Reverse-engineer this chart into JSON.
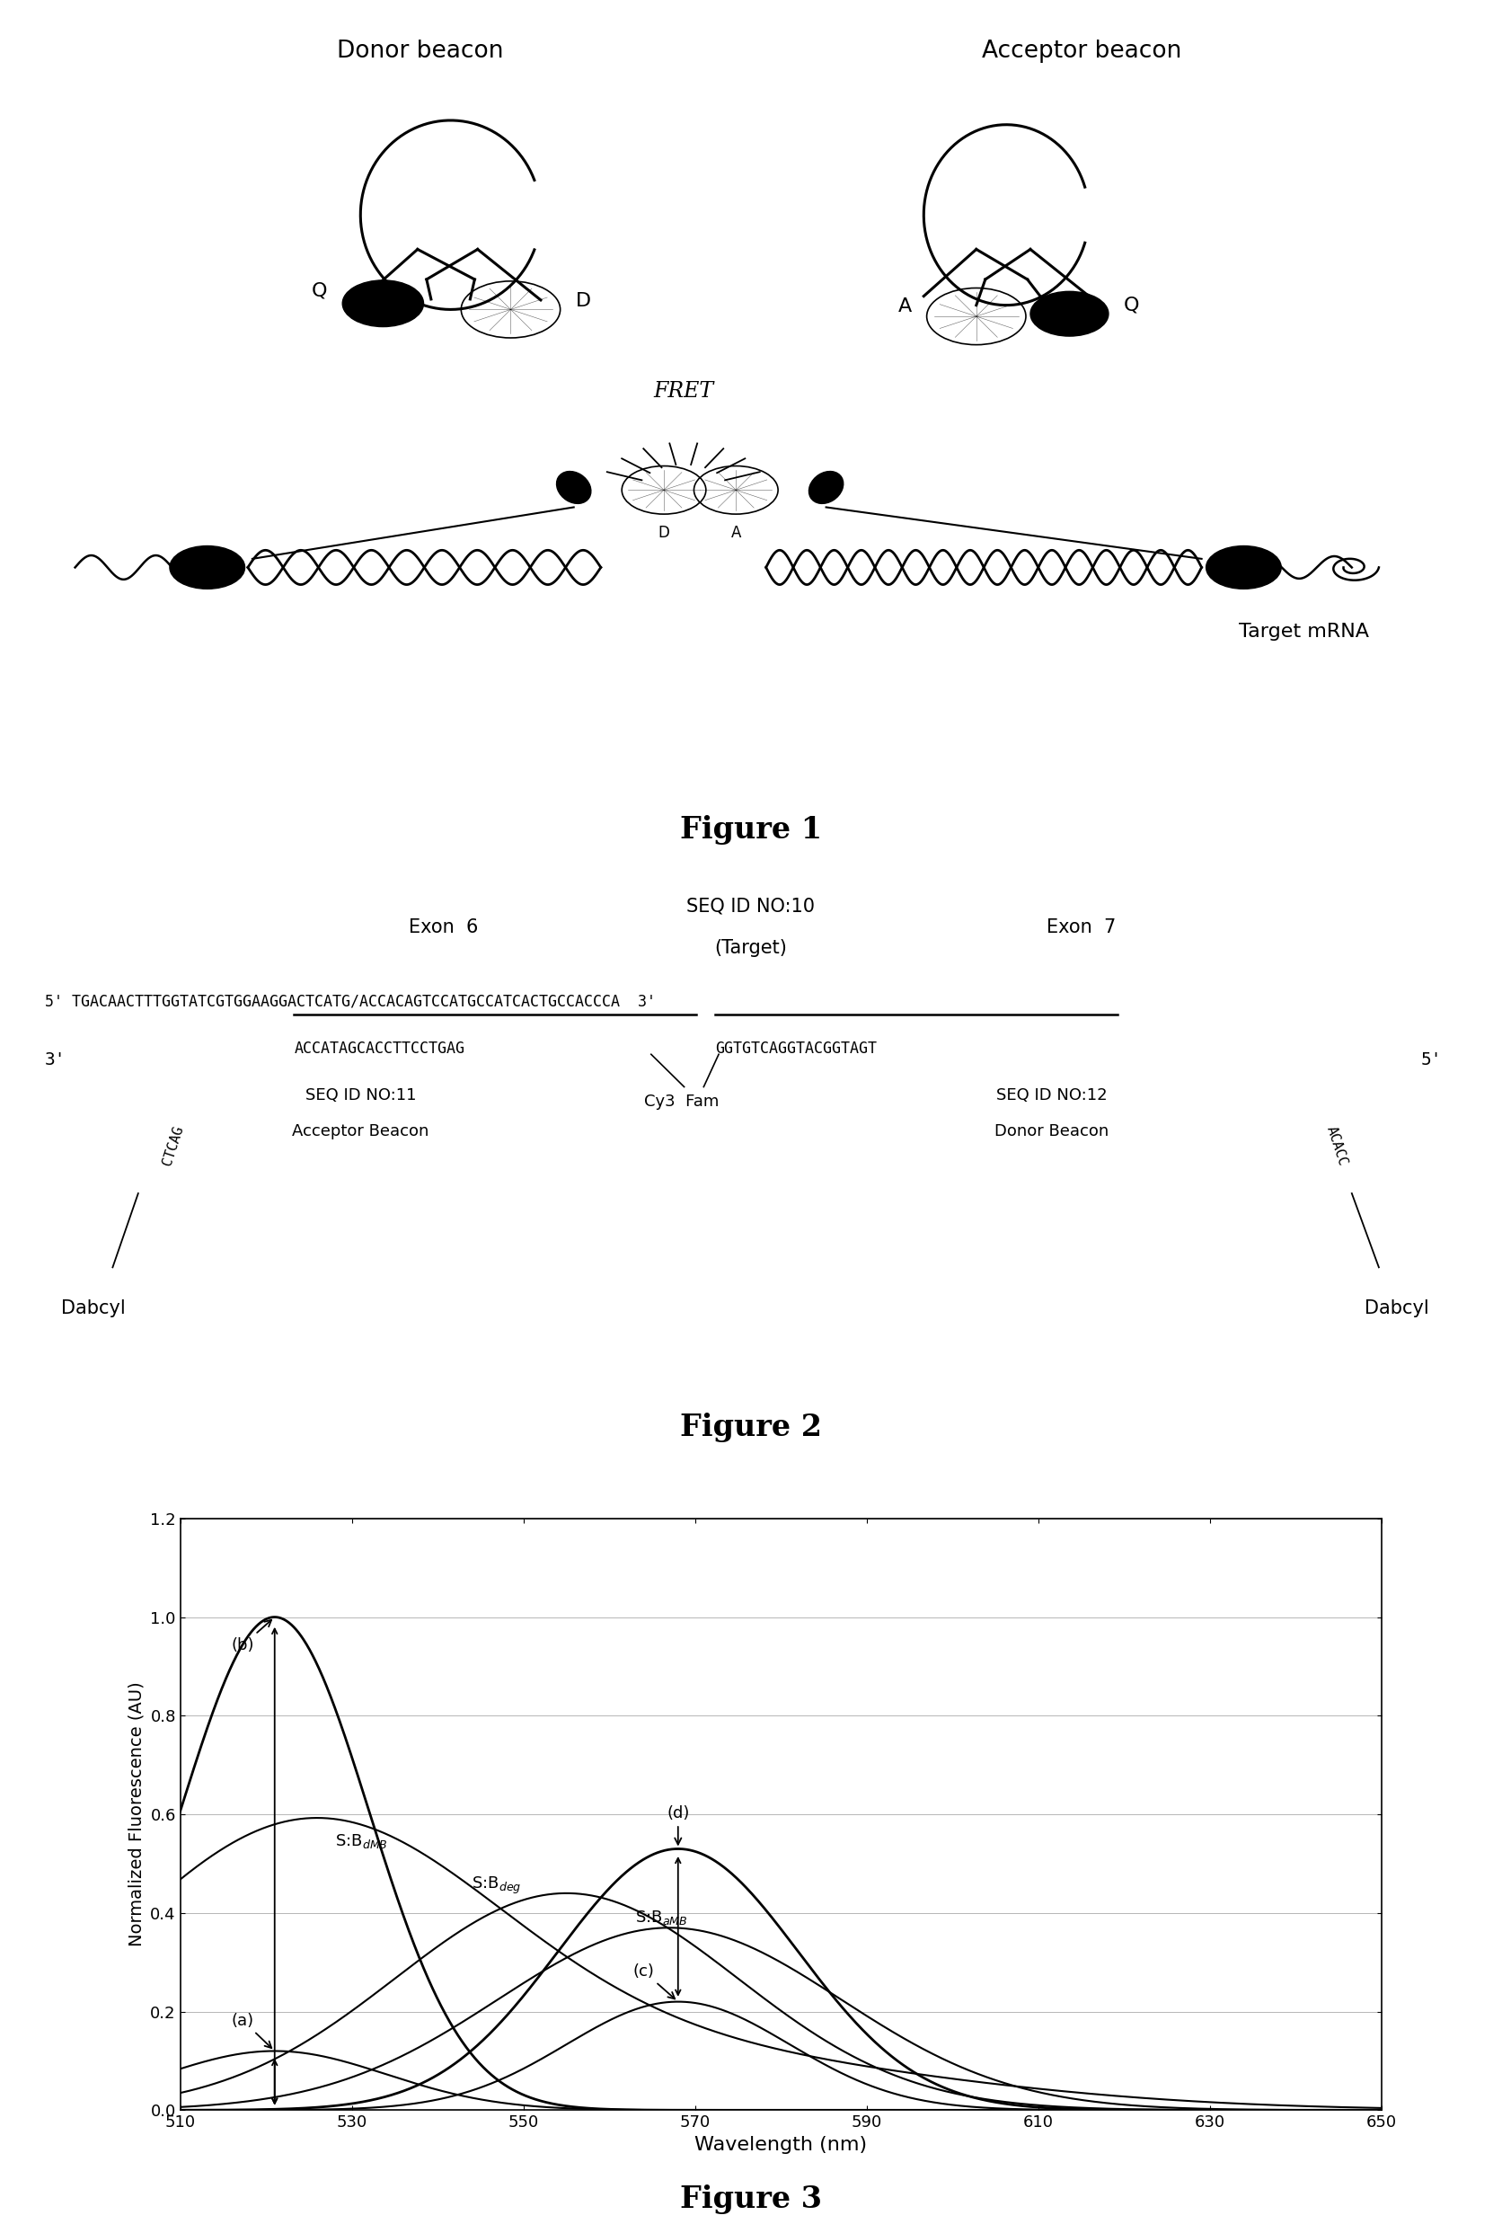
{
  "fig1_title": "Figure 1",
  "fig2_title": "Figure 2",
  "fig3_title": "Figure 3",
  "fig3_yticks": [
    0,
    0.2,
    0.4,
    0.6,
    0.8,
    1.0,
    1.2
  ],
  "fig3_xticks": [
    510,
    530,
    550,
    570,
    590,
    610,
    630,
    650
  ],
  "fig3_ylabel": "Normalized Fluorescence (AU)",
  "fig3_xlabel": "Wavelength (nm)",
  "background_color": "#ffffff",
  "text_color": "#000000"
}
